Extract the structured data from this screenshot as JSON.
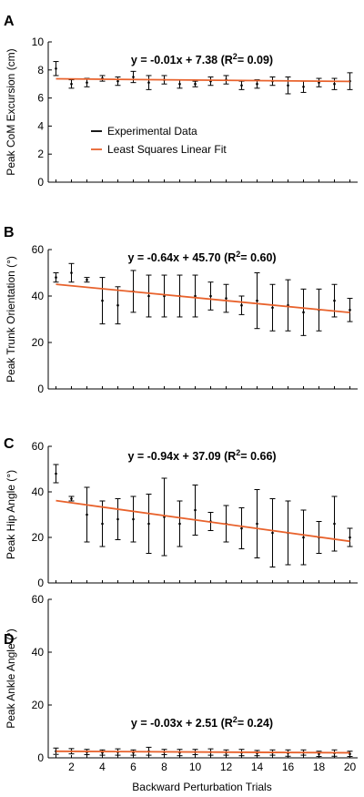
{
  "shared_xlabel": "Backward Perturbation Trials",
  "legend": {
    "items": [
      {
        "label": "Experimental Data",
        "color": "#000000"
      },
      {
        "label": "Least Squares Linear Fit",
        "color": "#e8622c"
      }
    ]
  },
  "chart_data": [
    {
      "type": "scatter",
      "panel": "A",
      "ylabel": "Peak CoM Excursion (cm)",
      "equation": "y = -0.01x + 7.38 (R",
      "equation_sup": "2",
      "equation_tail": "= 0.09)",
      "xlim": [
        0.5,
        20.5
      ],
      "ylim": [
        0,
        10
      ],
      "yticks": [
        0,
        2,
        4,
        6,
        8,
        10
      ],
      "x": [
        1,
        2,
        3,
        4,
        5,
        6,
        7,
        8,
        9,
        10,
        11,
        12,
        13,
        14,
        15,
        16,
        17,
        18,
        19,
        20
      ],
      "y": [
        8.1,
        7.0,
        7.1,
        7.4,
        7.2,
        7.5,
        7.1,
        7.3,
        7.0,
        7.0,
        7.2,
        7.3,
        6.9,
        7.0,
        7.2,
        6.9,
        6.8,
        7.1,
        7.0,
        7.2
      ],
      "err": [
        0.5,
        0.3,
        0.3,
        0.2,
        0.3,
        0.4,
        0.5,
        0.3,
        0.3,
        0.2,
        0.3,
        0.3,
        0.3,
        0.3,
        0.3,
        0.6,
        0.4,
        0.3,
        0.4,
        0.6
      ],
      "fit": {
        "slope": -0.01,
        "intercept": 7.38
      }
    },
    {
      "type": "scatter",
      "panel": "B",
      "ylabel": "Peak Trunk Orientation (°)",
      "equation": "y = -0.64x + 45.70 (R",
      "equation_sup": "2",
      "equation_tail": "= 0.60)",
      "xlim": [
        0.5,
        20.5
      ],
      "ylim": [
        0,
        60
      ],
      "yticks": [
        0,
        20,
        40,
        60
      ],
      "x": [
        1,
        2,
        3,
        4,
        5,
        6,
        7,
        8,
        9,
        10,
        11,
        12,
        13,
        14,
        15,
        16,
        17,
        18,
        19,
        20
      ],
      "y": [
        48,
        50,
        47,
        38,
        36,
        42,
        40,
        40,
        40,
        40,
        40,
        39,
        36,
        38,
        35,
        36,
        33,
        34,
        38,
        34
      ],
      "err": [
        2,
        4,
        1,
        10,
        8,
        9,
        9,
        9,
        9,
        9,
        6,
        6,
        4,
        12,
        10,
        11,
        10,
        9,
        7,
        5
      ],
      "fit": {
        "slope": -0.64,
        "intercept": 45.7
      }
    },
    {
      "type": "scatter",
      "panel": "C",
      "ylabel": "Peak Hip Angle (°)",
      "equation": "y = -0.94x + 37.09 (R",
      "equation_sup": "2",
      "equation_tail": "= 0.66)",
      "xlim": [
        0.5,
        20.5
      ],
      "ylim": [
        0,
        60
      ],
      "yticks": [
        0,
        20,
        40,
        60
      ],
      "x": [
        1,
        2,
        3,
        4,
        5,
        6,
        7,
        8,
        9,
        10,
        11,
        12,
        13,
        14,
        15,
        16,
        17,
        18,
        19,
        20
      ],
      "y": [
        48,
        37,
        30,
        26,
        28,
        28,
        26,
        29,
        26,
        32,
        27,
        26,
        24,
        26,
        22,
        22,
        20,
        20,
        26,
        20
      ],
      "err": [
        4,
        1,
        12,
        10,
        9,
        10,
        13,
        17,
        10,
        11,
        4,
        8,
        9,
        15,
        15,
        14,
        12,
        7,
        12,
        4
      ],
      "fit": {
        "slope": -0.94,
        "intercept": 37.09
      }
    },
    {
      "type": "scatter",
      "panel": "D",
      "ylabel": "Peak Ankle Angle (°)",
      "equation": "y = -0.03x + 2.51 (R",
      "equation_sup": "2",
      "equation_tail": "= 0.24)",
      "xlim": [
        0.5,
        20.5
      ],
      "ylim": [
        0,
        60
      ],
      "yticks": [
        0,
        20,
        40,
        60
      ],
      "xticks": [
        2,
        4,
        6,
        8,
        10,
        12,
        14,
        16,
        18,
        20
      ],
      "x": [
        1,
        2,
        3,
        4,
        5,
        6,
        7,
        8,
        9,
        10,
        11,
        12,
        13,
        14,
        15,
        16,
        17,
        18,
        19,
        20
      ],
      "y": [
        2.5,
        2.5,
        2.2,
        2.0,
        2.2,
        2.0,
        2.5,
        2.2,
        2.0,
        2.2,
        2.2,
        2.0,
        2.0,
        1.8,
        2.0,
        1.8,
        2.0,
        1.5,
        1.8,
        1.5
      ],
      "err": [
        1.2,
        1.0,
        1.0,
        1.0,
        1.2,
        1.0,
        1.5,
        1.0,
        1.2,
        1.0,
        1.2,
        1.0,
        1.2,
        1.0,
        1.0,
        1.2,
        1.0,
        1.0,
        1.2,
        1.0
      ],
      "fit": {
        "slope": -0.03,
        "intercept": 2.51
      }
    }
  ]
}
